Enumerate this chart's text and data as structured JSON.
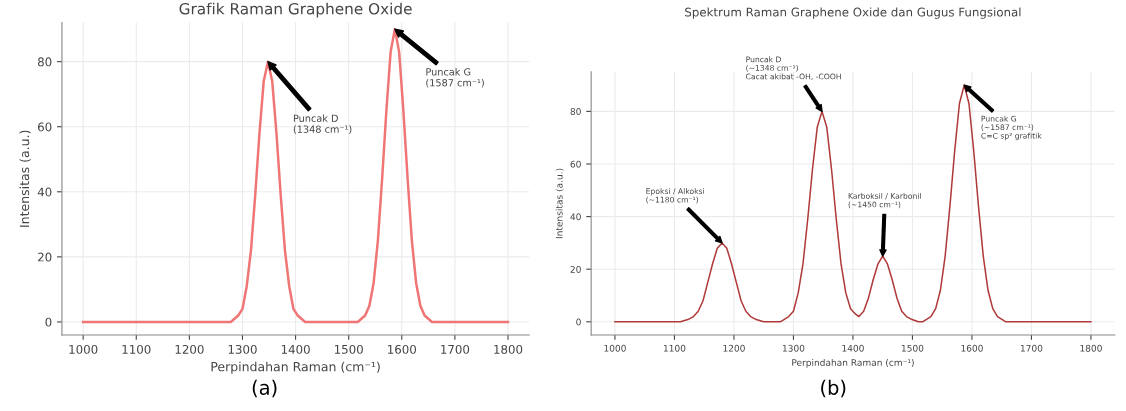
{
  "chart_data": [
    {
      "type": "line",
      "title": "Grafik Raman Graphene Oxide",
      "xlabel": "Perpindahan Raman (cm⁻¹)",
      "ylabel": "Intensitas (a.u.)",
      "xlim": [
        960,
        1840
      ],
      "xticks": [
        1000,
        1100,
        1200,
        1300,
        1400,
        1500,
        1600,
        1700,
        1800
      ],
      "ylim": [
        -4,
        92
      ],
      "yticks": [
        0,
        20,
        40,
        60,
        80
      ],
      "grid": true,
      "series": [
        {
          "color": "#f07575",
          "x": [
            1000,
            1278,
            1292,
            1300,
            1308,
            1316,
            1324,
            1332,
            1340,
            1348,
            1356,
            1364,
            1372,
            1380,
            1388,
            1396,
            1404,
            1418,
            1517,
            1531,
            1539,
            1547,
            1555,
            1563,
            1571,
            1579,
            1587,
            1595,
            1603,
            1611,
            1619,
            1627,
            1635,
            1643,
            1657,
            1800
          ],
          "values": [
            0,
            0,
            2,
            4,
            11,
            22,
            39,
            58,
            74,
            80,
            74,
            58,
            39,
            22,
            11,
            4,
            2,
            0,
            0,
            2,
            5,
            12,
            25,
            44,
            65,
            83,
            90,
            83,
            65,
            44,
            25,
            12,
            5,
            2,
            0,
            0
          ]
        }
      ],
      "annotations": [
        "Puncak D\n(1348 cm⁻¹)",
        "Puncak G\n(1587 cm⁻¹)",
        "(a)"
      ]
    },
    {
      "type": "line",
      "title": "Spektrum Raman Graphene Oxide dan Gugus Fungsional",
      "xlabel": "Perpindahan Raman (cm⁻¹)",
      "ylabel": "Intensitas (a.u.)",
      "xlim": [
        960,
        1840
      ],
      "xticks": [
        1000,
        1100,
        1200,
        1300,
        1400,
        1500,
        1600,
        1700,
        1800
      ],
      "ylim": [
        -5,
        95
      ],
      "yticks": [
        0,
        20,
        40,
        60,
        80
      ],
      "grid": true,
      "series": [
        {
          "color": "#b03a3a",
          "x": [
            1000,
            1110,
            1124,
            1132,
            1140,
            1148,
            1156,
            1164,
            1172,
            1180,
            1188,
            1196,
            1204,
            1212,
            1220,
            1228,
            1236,
            1250,
            1278,
            1292,
            1300,
            1308,
            1316,
            1324,
            1332,
            1340,
            1348,
            1356,
            1364,
            1372,
            1380,
            1388,
            1396,
            1404,
            1410,
            1418,
            1426,
            1434,
            1442,
            1450,
            1458,
            1466,
            1474,
            1482,
            1490,
            1498,
            1510,
            1517,
            1531,
            1539,
            1547,
            1555,
            1563,
            1571,
            1579,
            1587,
            1595,
            1603,
            1611,
            1619,
            1627,
            1635,
            1643,
            1657,
            1800
          ],
          "values": [
            0,
            0,
            1,
            2,
            4,
            8,
            15,
            22,
            28,
            30,
            28,
            22,
            15,
            8,
            4,
            2,
            1,
            0,
            0,
            2,
            4,
            11,
            22,
            39,
            58,
            74,
            80,
            74,
            58,
            39,
            22,
            11,
            5,
            3,
            2,
            4,
            9,
            16,
            22,
            25,
            22,
            16,
            9,
            4,
            2,
            1,
            0,
            0,
            2,
            5,
            12,
            25,
            44,
            65,
            83,
            90,
            83,
            65,
            44,
            25,
            12,
            5,
            2,
            0,
            0
          ]
        }
      ],
      "annotations": [
        "Epoksi / Alkoksi\n(~1180 cm⁻¹)",
        "Puncak D\n(~1348 cm⁻¹)\nCacat akibat -OH, -COOH",
        "Karboksil / Karbonil\n(~1450 cm⁻¹)",
        "Puncak G\n(~1587 cm⁻¹)\nC=C sp² grafitik",
        "(b)"
      ]
    }
  ]
}
